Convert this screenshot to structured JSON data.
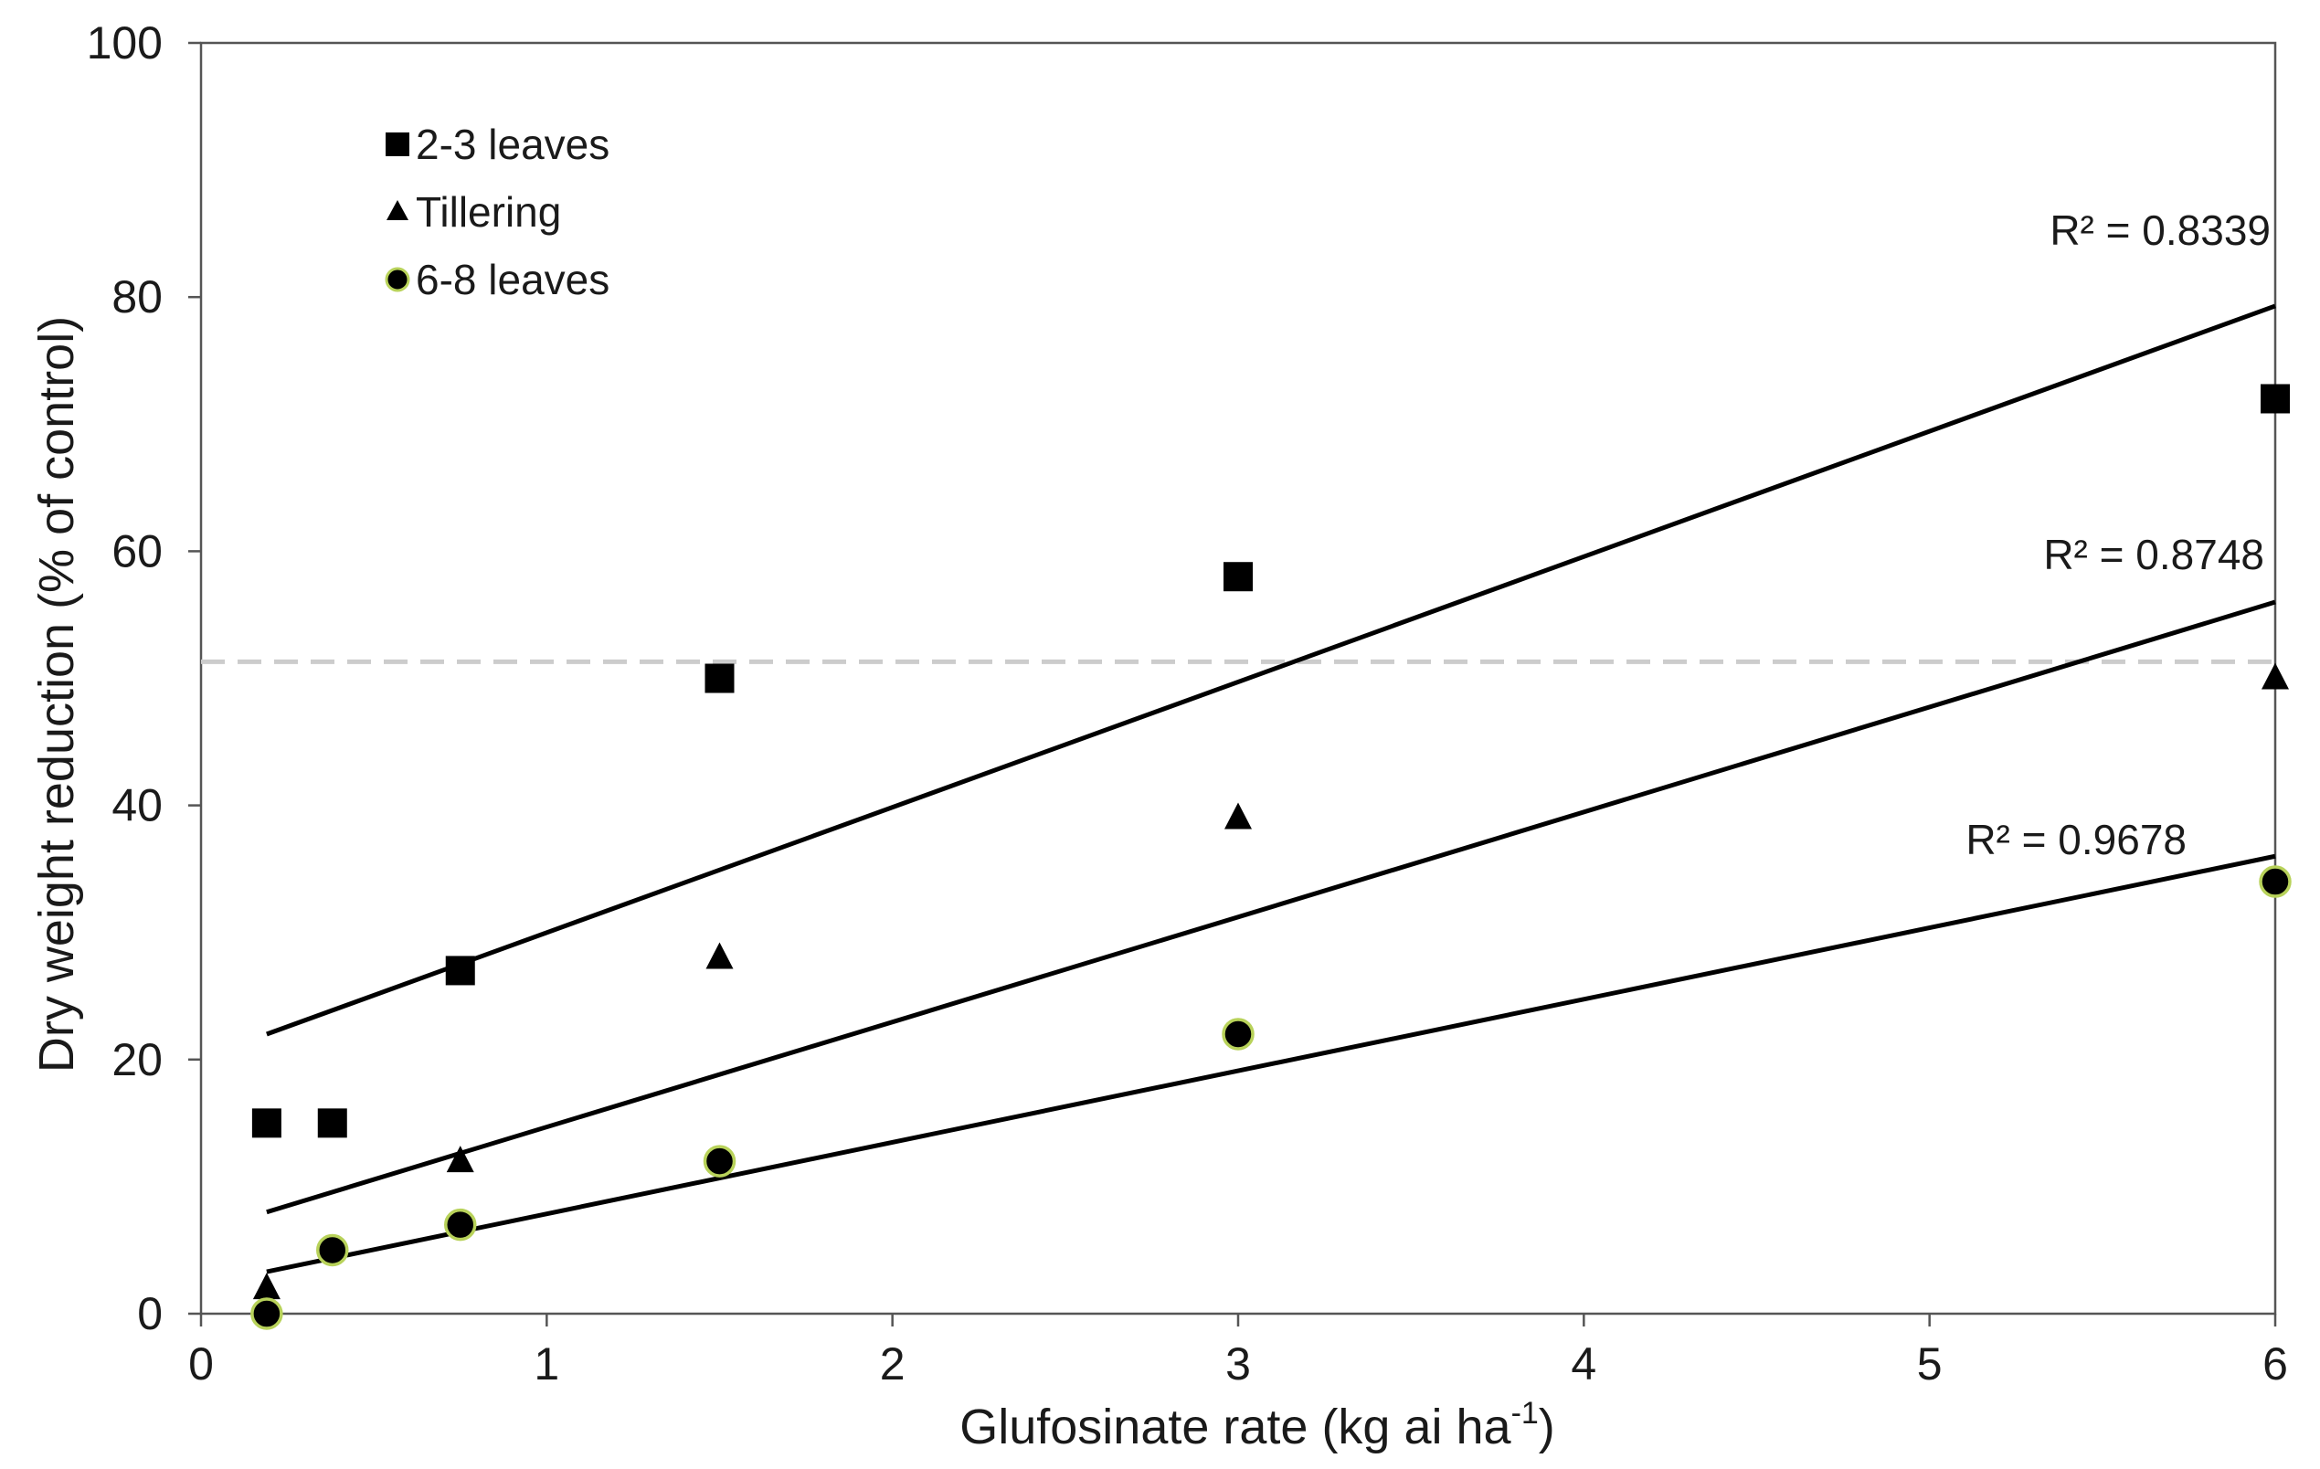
{
  "chart_data": {
    "type": "scatter",
    "title": "",
    "xlabel": "Glufosinate rate (kg ai ha",
    "xlabel_superscript": "-1",
    "xlabel_suffix": ")",
    "ylabel": "Dry weight reduction  (% of control)",
    "xlim": [
      0,
      6
    ],
    "ylim": [
      0,
      100
    ],
    "xticks": [
      0,
      1,
      2,
      3,
      4,
      5,
      6
    ],
    "yticks": [
      0,
      20,
      40,
      60,
      80,
      100
    ],
    "reference_line": {
      "y": 51.3,
      "style": "dashed",
      "color": "#cccccc"
    },
    "series": [
      {
        "name": "2-3 leaves",
        "marker": "square",
        "color": "#000000",
        "x": [
          0.19,
          0.38,
          0.75,
          1.5,
          3,
          6
        ],
        "y": [
          15,
          15,
          27,
          50,
          58,
          72
        ],
        "trendline": {
          "x": [
            0.19,
            6
          ],
          "y": [
            22,
            79.3
          ]
        },
        "r2_label": "R² = 0.8339"
      },
      {
        "name": "Tillering",
        "marker": "triangle",
        "color": "#000000",
        "x": [
          0.19,
          0.75,
          1.5,
          3,
          6
        ],
        "y": [
          2,
          12,
          28,
          39,
          50
        ],
        "trendline": {
          "x": [
            0.19,
            6
          ],
          "y": [
            8,
            56
          ]
        },
        "r2_label": "R² = 0.8748"
      },
      {
        "name": "6-8 leaves",
        "marker": "circle",
        "color": "#000000",
        "stroke": "#b8d25a",
        "x": [
          0.19,
          0.38,
          0.75,
          1.5,
          3,
          6
        ],
        "y": [
          0,
          5,
          7,
          12,
          22,
          34
        ],
        "trendline": {
          "x": [
            0.19,
            6
          ],
          "y": [
            3.3,
            36
          ]
        },
        "r2_label": "R² = 0.9678"
      }
    ],
    "legend_position": "top-left"
  }
}
